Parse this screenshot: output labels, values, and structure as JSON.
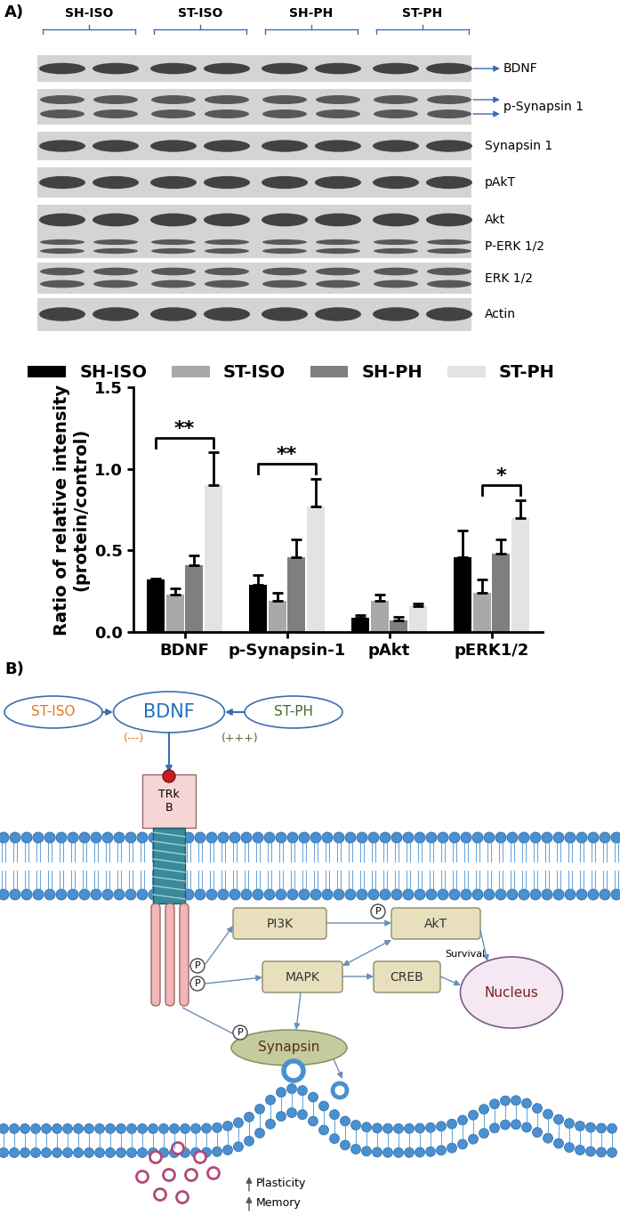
{
  "panel_a": {
    "label": "A)",
    "blot": {
      "groups": [
        "SH-ISO",
        "ST-ISO",
        "SH-PH",
        "ST-PH"
      ],
      "rows": [
        "BDNF",
        "p-Synapsin 1",
        "Synapsin 1",
        "pAkT",
        "Akt",
        "P-ERK 1/2",
        "ERK 1/2",
        "Actin"
      ]
    }
  },
  "chart_data": {
    "type": "bar",
    "categories": [
      "BDNF",
      "p-Synapsin-1",
      "pAkt",
      "pERK1/2"
    ],
    "y_label": "Ratio of relative intensity\n(protein/control)",
    "ylim": [
      0,
      1.5
    ],
    "yticks": [
      {
        "value": 0,
        "label": "0.0"
      },
      {
        "value": 0.5,
        "label": "0.5"
      },
      {
        "value": 1.0,
        "label": "1.0"
      },
      {
        "value": 1.5,
        "label": "1.5"
      }
    ],
    "legend": "upper center",
    "series": [
      {
        "name": "SH-ISO",
        "color": "#000000",
        "values": [
          0.32,
          0.29,
          0.09,
          0.46
        ],
        "errors": [
          0.01,
          0.06,
          0.015,
          0.16
        ]
      },
      {
        "name": "ST-ISO",
        "color": "#a9a9a9",
        "values": [
          0.23,
          0.19,
          0.19,
          0.24
        ],
        "errors": [
          0.04,
          0.05,
          0.04,
          0.08
        ]
      },
      {
        "name": "SH-PH",
        "color": "#7f7f7f",
        "values": [
          0.41,
          0.46,
          0.07,
          0.48
        ],
        "errors": [
          0.06,
          0.11,
          0.025,
          0.09
        ]
      },
      {
        "name": "ST-PH",
        "color": "#e3e3e3",
        "values": [
          0.9,
          0.77,
          0.16,
          0.7
        ],
        "errors": [
          0.2,
          0.17,
          0.015,
          0.11
        ]
      }
    ],
    "significance": [
      {
        "category": "BDNF",
        "from": "SH-ISO",
        "to": "ST-PH",
        "label": "**"
      },
      {
        "category": "p-Synapsin-1",
        "from": "SH-ISO",
        "to": "ST-PH",
        "label": "**"
      },
      {
        "category": "pERK1/2",
        "from": "ST-ISO",
        "to": "ST-PH",
        "label": "*"
      }
    ]
  },
  "panel_b": {
    "label": "B)",
    "inputs": {
      "left": "ST-ISO",
      "center": "BDNF",
      "right": "ST-PH",
      "left_effect": "(---)",
      "right_effect": "(+++)"
    },
    "receptor": "TRk\nB",
    "phospho": "P",
    "nodes": {
      "pi3k": "PI3K",
      "akt": "AkT",
      "mapk": "MAPK",
      "creb": "CREB",
      "synapsin": "Synapsin",
      "nucleus": "Nucleus"
    },
    "edge_labels": {
      "survival": "Survival"
    },
    "outcomes": [
      "Plasticity",
      "Memory"
    ]
  }
}
